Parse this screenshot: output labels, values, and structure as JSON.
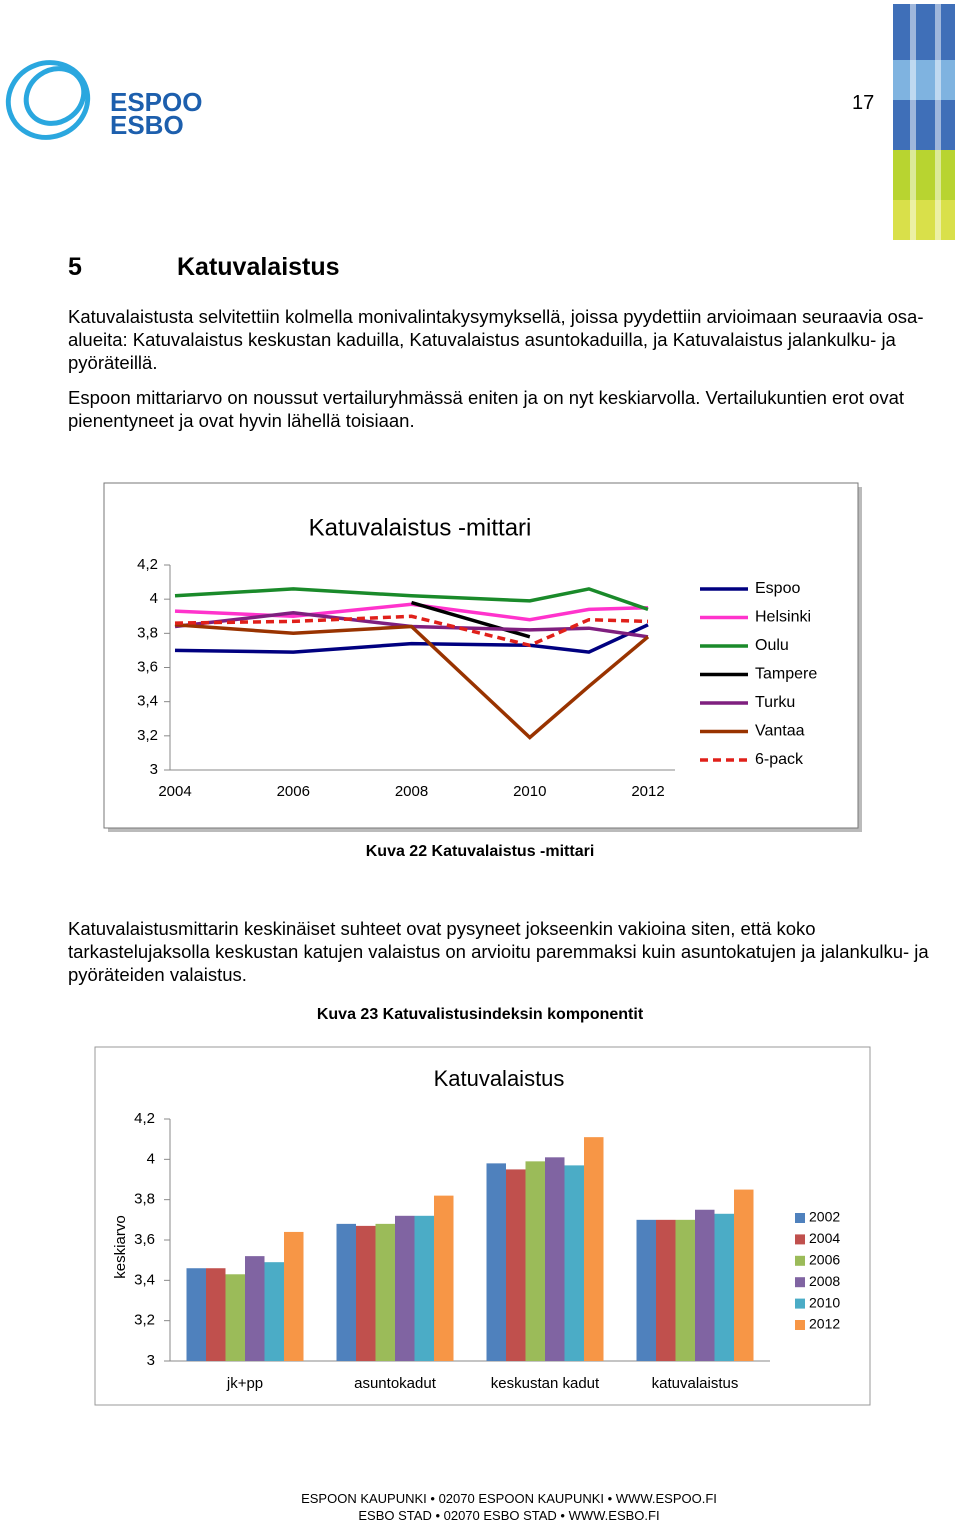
{
  "header": {
    "logo_lines": [
      "ESPOO",
      "ESBO"
    ],
    "page_number": "17"
  },
  "heading": {
    "number": "5",
    "title": "Katuvalaistus"
  },
  "paragraphs": [
    "Katuvalaistusta selvitettiin kolmella monivalintakysymyksellä, joissa pyydettiin arvioimaan seuraavia osa-alueita: Katuvalaistus keskustan kaduilla, Katuvalaistus asuntokaduilla, ja Katuvalaistus jalankulku- ja pyöräteillä.",
    "Espoon mittariarvo on noussut vertailuryhmässä eniten ja on nyt keskiarvolla. Vertailukuntien erot ovat pienentyneet ja ovat hyvin lähellä toisiaan.",
    "Katuvalaistusmittarin keskinäiset suhteet ovat pysyneet jokseenkin vakioina siten, että koko tarkastelujaksolla keskustan katujen valaistus on arvioitu paremmaksi kuin asuntokatujen ja jalankulku- ja pyöräteiden valaistus."
  ],
  "captions": [
    "Kuva 22 Katuvalaistus -mittari",
    "Kuva 23 Katuvalistusindeksin komponentit"
  ],
  "footer": [
    "ESPOON KAUPUNKI • 02070 ESPOON KAUPUNKI • WWW.ESPOO.FI",
    "ESBO STAD • 02070 ESBO STAD • WWW.ESBO.FI"
  ],
  "chart_data": [
    {
      "type": "line",
      "title": "Katuvalaistus -mittari",
      "x": [
        2004,
        2006,
        2008,
        2010,
        2011,
        2012
      ],
      "xlim": [
        2004,
        2012
      ],
      "xticks": [
        2004,
        2006,
        2008,
        2010,
        2012
      ],
      "ylim": [
        3,
        4.2
      ],
      "yticks": [
        3,
        {
          "value": 3.2,
          "label": "3,2"
        },
        {
          "value": 3.4,
          "label": "3,4"
        },
        {
          "value": 3.6,
          "label": "3,6"
        },
        {
          "value": 3.8,
          "label": "3,8"
        },
        4,
        {
          "value": 4.2,
          "label": "4,2"
        }
      ],
      "grid": false,
      "legend": "right",
      "series": [
        {
          "name": "Espoo",
          "color": "#000080",
          "values": [
            3.7,
            3.69,
            3.74,
            3.73,
            3.69,
            3.85
          ]
        },
        {
          "name": "Helsinki",
          "color": "#ff33cc",
          "values": [
            3.93,
            3.9,
            3.97,
            3.88,
            3.94,
            3.95
          ]
        },
        {
          "name": "Oulu",
          "color": "#1a8a2a",
          "values": [
            4.02,
            4.06,
            4.02,
            3.99,
            4.06,
            3.94
          ]
        },
        {
          "name": "Tampere",
          "color": "#000000",
          "values": [
            null,
            null,
            3.98,
            3.78,
            null,
            null
          ]
        },
        {
          "name": "Turku",
          "color": "#7f1f7f",
          "values": [
            3.84,
            3.92,
            3.84,
            3.82,
            3.83,
            3.78
          ]
        },
        {
          "name": "Vantaa",
          "color": "#993300",
          "values": [
            3.85,
            3.8,
            3.84,
            3.19,
            3.49,
            3.78
          ]
        },
        {
          "name": "6-pack",
          "color": "#e0201a",
          "dashed": true,
          "values": [
            3.86,
            3.87,
            3.9,
            3.73,
            3.88,
            3.87
          ]
        }
      ]
    },
    {
      "type": "bar",
      "title": "Katuvalaistus",
      "ylabel": "keskiarvo",
      "categories": [
        "jk+pp",
        "asuntokadut",
        "keskustan kadut",
        "katuvalaistus"
      ],
      "ylim": [
        3,
        4.2
      ],
      "yticks": [
        3,
        {
          "value": 3.2,
          "label": "3,2"
        },
        {
          "value": 3.4,
          "label": "3,4"
        },
        {
          "value": 3.6,
          "label": "3,6"
        },
        {
          "value": 3.8,
          "label": "3,8"
        },
        4,
        {
          "value": 4.2,
          "label": "4,2"
        }
      ],
      "grid": false,
      "legend": "right",
      "series": [
        {
          "name": "2002",
          "color": "#4f81bd",
          "values": [
            3.46,
            3.68,
            3.98,
            3.7
          ]
        },
        {
          "name": "2004",
          "color": "#c0504d",
          "values": [
            3.46,
            3.67,
            3.95,
            3.7
          ]
        },
        {
          "name": "2006",
          "color": "#9bbb59",
          "values": [
            3.43,
            3.68,
            3.99,
            3.7
          ]
        },
        {
          "name": "2008",
          "color": "#8064a2",
          "values": [
            3.52,
            3.72,
            4.01,
            3.75
          ]
        },
        {
          "name": "2010",
          "color": "#4bacc6",
          "values": [
            3.49,
            3.72,
            3.97,
            3.73
          ]
        },
        {
          "name": "2012",
          "color": "#f79646",
          "values": [
            3.64,
            3.82,
            4.11,
            3.85
          ]
        }
      ]
    }
  ]
}
